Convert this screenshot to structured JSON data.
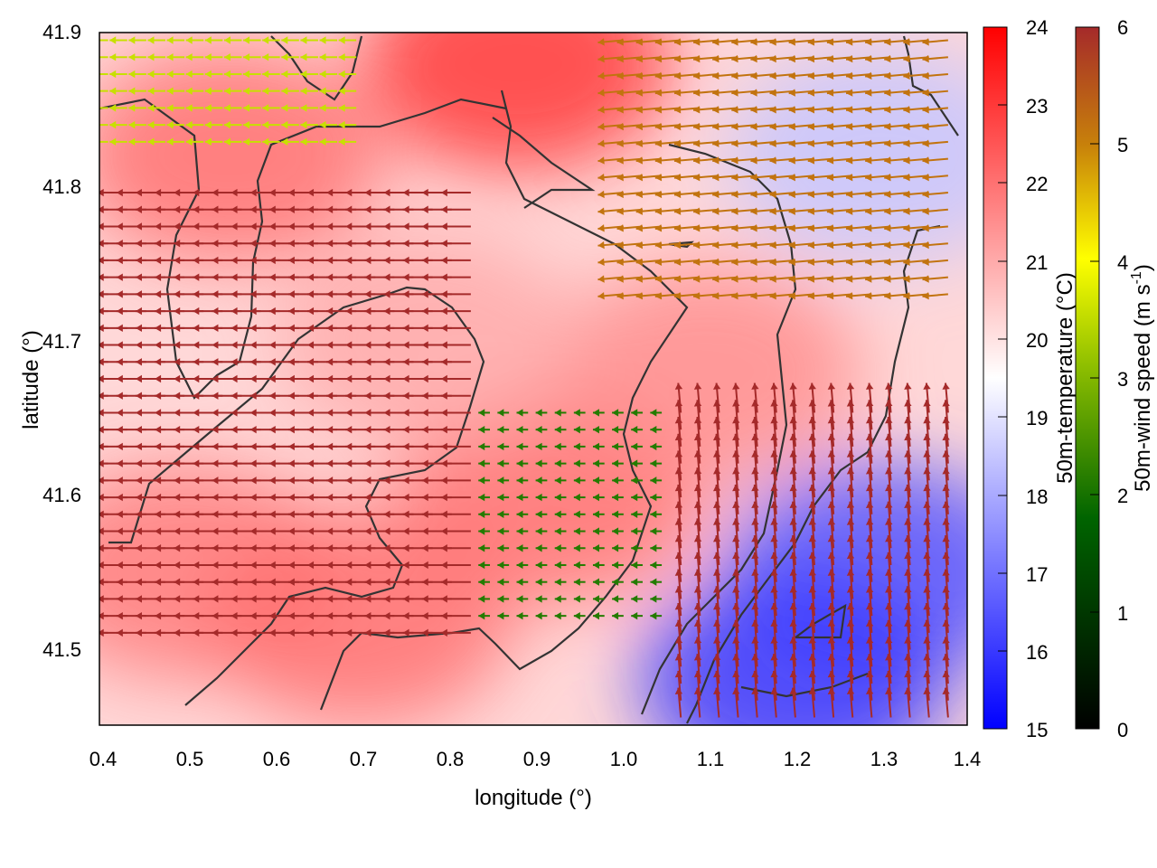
{
  "chart_data": {
    "type": "heatmap",
    "title": "",
    "xlabel": "longitude (°)",
    "ylabel": "latitude (°)",
    "xlim": [
      0.4,
      1.4
    ],
    "ylim": [
      41.45,
      41.9
    ],
    "xticks": [
      "0.4",
      "0.5",
      "0.6",
      "0.7",
      "0.8",
      "0.9",
      "1.0",
      "1.1",
      "1.2",
      "1.3",
      "1.4"
    ],
    "yticks": [
      "41.5",
      "41.6",
      "41.7",
      "41.8",
      "41.9"
    ],
    "temperature_colorbar": {
      "label": "50m-temperature (°C)",
      "range": [
        15,
        24
      ],
      "ticks": [
        "15",
        "16",
        "17",
        "18",
        "19",
        "20",
        "21",
        "22",
        "23",
        "24"
      ],
      "colors": [
        "#0000ff",
        "#ffffff",
        "#ff0000"
      ]
    },
    "wind_colorbar": {
      "label_main": "50m-wind speed (m s",
      "label_sup": "-1",
      "label_end": ")",
      "range": [
        0,
        6
      ],
      "ticks": [
        "0",
        "1",
        "2",
        "3",
        "4",
        "5",
        "6"
      ],
      "colors": [
        "#000000",
        "#006400",
        "#90c000",
        "#ffff00",
        "#c8820a",
        "#a52a2a"
      ]
    },
    "temperature_regions": [
      {
        "lon": 0.55,
        "lat": 41.82,
        "temp": 22.0
      },
      {
        "lon": 0.5,
        "lat": 41.55,
        "temp": 21.8
      },
      {
        "lon": 0.7,
        "lat": 41.52,
        "temp": 22.0
      },
      {
        "lon": 0.88,
        "lat": 41.88,
        "temp": 23.0
      },
      {
        "lon": 0.92,
        "lat": 41.6,
        "temp": 22.0
      },
      {
        "lon": 1.1,
        "lat": 41.68,
        "temp": 21.5
      },
      {
        "lon": 1.3,
        "lat": 41.55,
        "temp": 16.5
      },
      {
        "lon": 1.2,
        "lat": 41.48,
        "temp": 16.0
      },
      {
        "lon": 1.3,
        "lat": 41.82,
        "temp": 18.5
      },
      {
        "lon": 0.78,
        "lat": 41.7,
        "temp": 21.0
      }
    ],
    "wind_regions": [
      {
        "lon_range": [
          0.4,
          0.85
        ],
        "lat_range": [
          41.5,
          41.8
        ],
        "speed": 6.0,
        "direction_deg": 180
      },
      {
        "lon_range": [
          0.85,
          1.05
        ],
        "lat_range": [
          41.52,
          41.66
        ],
        "speed": 1.5,
        "direction_deg": 180
      },
      {
        "lon_range": [
          1.05,
          1.4
        ],
        "lat_range": [
          41.45,
          41.66
        ],
        "speed": 6.0,
        "direction_deg": 95
      },
      {
        "lon_range": [
          1.0,
          1.4
        ],
        "lat_range": [
          41.72,
          41.9
        ],
        "speed": 5.0,
        "direction_deg": 185
      },
      {
        "lon_range": [
          0.4,
          0.7
        ],
        "lat_range": [
          41.82,
          41.9
        ],
        "speed": 3.0,
        "direction_deg": 180
      }
    ]
  }
}
